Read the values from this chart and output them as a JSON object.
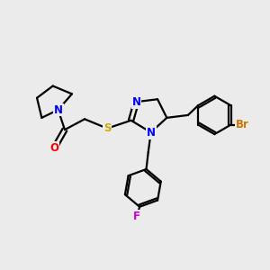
{
  "background_color": "#ebebeb",
  "line_color": "#000000",
  "line_width": 1.6,
  "atom_colors": {
    "N": "#0000ff",
    "O": "#ff0000",
    "S": "#ccaa00",
    "Br": "#cc7700",
    "F": "#cc00cc"
  },
  "font_size": 8.5,
  "figsize": [
    3.0,
    3.0
  ],
  "dpi": 100
}
